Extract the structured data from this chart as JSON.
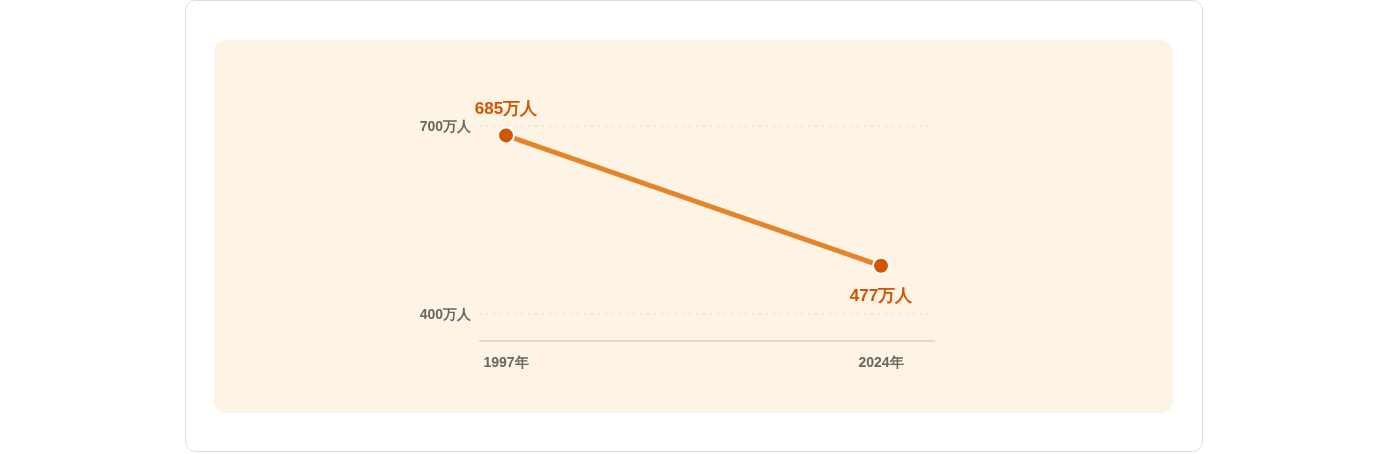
{
  "chart_data": {
    "type": "line",
    "categories": [
      "1997年",
      "2024年"
    ],
    "series": [
      {
        "color": "#e5852b",
        "colors": [
          "#d35400",
          "#d35400"
        ],
        "values": [
          685,
          477
        ],
        "value_labels": [
          "685万人",
          "477万人"
        ]
      }
    ],
    "ylim": [
      357,
      700
    ],
    "yticks": [
      {
        "value": 700,
        "label": "700万人"
      },
      {
        "value": 400,
        "label": "400万人"
      }
    ],
    "grid": "y",
    "marker": "circle",
    "line_style": "solid"
  }
}
